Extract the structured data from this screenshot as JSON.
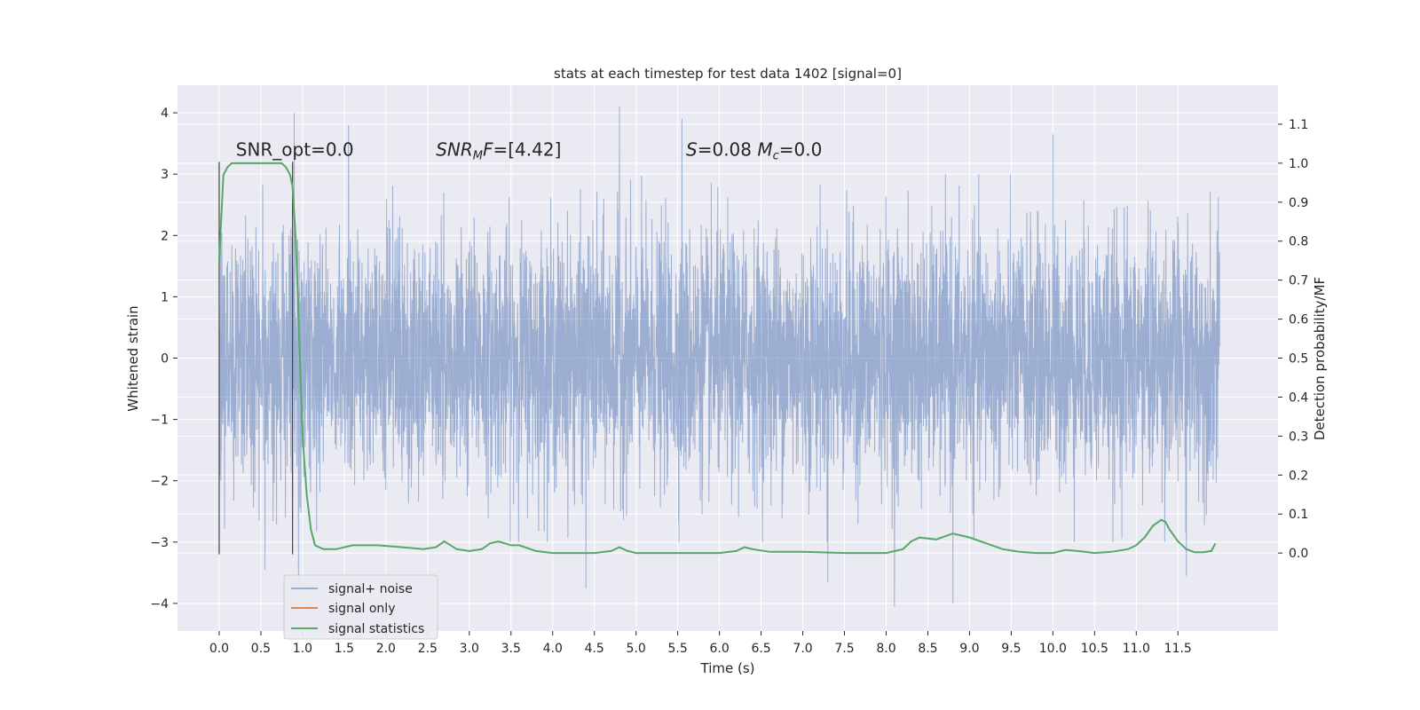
{
  "chart_data": {
    "type": "line",
    "title": "stats at each timestep for test data 1402 [signal=0]",
    "xlabel": "Time (s)",
    "ylabel": "Whitened strain",
    "y2label": "Detection probability/MF",
    "xlim": [
      -0.5,
      12.7
    ],
    "ylim": [
      -4.45,
      4.45
    ],
    "y2lim": [
      -0.2,
      1.2
    ],
    "grid": true,
    "legend_position": "lower-left",
    "x_ticks": [
      0.0,
      0.5,
      1.0,
      1.5,
      2.0,
      2.5,
      3.0,
      3.5,
      4.0,
      4.5,
      5.0,
      5.5,
      6.0,
      6.5,
      7.0,
      7.5,
      8.0,
      8.5,
      9.0,
      9.5,
      10.0,
      10.5,
      11.0,
      11.5
    ],
    "x_tick_labels": [
      "0.0",
      "0.5",
      "1.0",
      "1.5",
      "2.0",
      "2.5",
      "3.0",
      "3.5",
      "4.0",
      "4.5",
      "5.0",
      "5.5",
      "6.0",
      "6.5",
      "7.0",
      "7.5",
      "8.0",
      "8.5",
      "9.0",
      "9.5",
      "10.0",
      "10.5",
      "11.0",
      "11.5"
    ],
    "y_ticks": [
      4,
      3,
      2,
      1,
      0,
      -1,
      -2,
      -3,
      -4
    ],
    "y_tick_labels": [
      "4",
      "3",
      "2",
      "1",
      "0",
      "−1",
      "−2",
      "−3",
      "−4"
    ],
    "y2_ticks": [
      1.1,
      1.0,
      0.9,
      0.8,
      0.7,
      0.6,
      0.5,
      0.4,
      0.3,
      0.2,
      0.1,
      0.0
    ],
    "y2_tick_labels": [
      "1.1",
      "1.0",
      "0.9",
      "0.8",
      "0.7",
      "0.6",
      "0.5",
      "0.4",
      "0.3",
      "0.2",
      "0.1",
      "0.0"
    ],
    "annotations": [
      {
        "id": "snr-opt",
        "text": "SNR_opt=0.0",
        "x": 0.2,
        "y": 3.3
      },
      {
        "id": "snr-mf",
        "text": "SNR_MF=[4.42]",
        "x": 2.6,
        "y": 3.3
      },
      {
        "id": "s-mc",
        "text": "S=0.08   M_c=0.0",
        "x": 5.6,
        "y": 3.3
      }
    ],
    "vlines": [
      {
        "x": 0.0,
        "ymin": -3.2,
        "ymax": 3.2
      },
      {
        "x": 0.88,
        "ymin": -3.2,
        "ymax": 3.2
      }
    ],
    "series": [
      {
        "name": "signal+ noise",
        "color": "#4c72b0",
        "opacity": 0.5,
        "envelope": {
          "x_range": [
            0.0,
            12.0
          ],
          "typical_abs": 2.0,
          "peaks": [
            {
              "x": 0.9,
              "y": 4.0
            },
            {
              "x": 1.55,
              "y": 3.8
            },
            {
              "x": 4.8,
              "y": 4.1
            },
            {
              "x": 5.55,
              "y": 3.9
            },
            {
              "x": 10.0,
              "y": 3.65
            },
            {
              "x": 0.55,
              "y": -3.45
            },
            {
              "x": 0.95,
              "y": -3.7
            },
            {
              "x": 4.4,
              "y": -3.75
            },
            {
              "x": 8.1,
              "y": -4.05
            },
            {
              "x": 8.8,
              "y": -4.0
            },
            {
              "x": 11.6,
              "y": -3.55
            },
            {
              "x": 7.3,
              "y": -3.65
            }
          ]
        }
      },
      {
        "name": "signal only",
        "color": "#dd8452",
        "values": []
      },
      {
        "name": "signal statistics",
        "color": "#55a868",
        "axis": "right",
        "x": [
          0.0,
          0.05,
          0.1,
          0.15,
          0.2,
          0.3,
          0.4,
          0.5,
          0.6,
          0.7,
          0.75,
          0.8,
          0.85,
          0.88,
          0.92,
          0.96,
          1.0,
          1.05,
          1.1,
          1.15,
          1.25,
          1.4,
          1.6,
          1.9,
          2.2,
          2.45,
          2.6,
          2.7,
          2.85,
          3.0,
          3.15,
          3.25,
          3.35,
          3.5,
          3.6,
          3.8,
          4.0,
          4.5,
          4.7,
          4.8,
          4.9,
          5.0,
          5.5,
          6.0,
          6.2,
          6.3,
          6.4,
          6.6,
          7.0,
          7.5,
          8.0,
          8.2,
          8.3,
          8.4,
          8.6,
          8.8,
          9.0,
          9.2,
          9.4,
          9.6,
          9.8,
          10.0,
          10.15,
          10.3,
          10.5,
          10.7,
          10.9,
          11.0,
          11.1,
          11.2,
          11.3,
          11.35,
          11.4,
          11.5,
          11.6,
          11.7,
          11.8,
          11.9,
          11.95
        ],
        "values": [
          0.75,
          0.97,
          0.99,
          1.0,
          1.0,
          1.0,
          1.0,
          1.0,
          1.0,
          1.0,
          1.0,
          0.99,
          0.97,
          0.94,
          0.8,
          0.55,
          0.3,
          0.15,
          0.06,
          0.02,
          0.01,
          0.01,
          0.02,
          0.02,
          0.015,
          0.01,
          0.015,
          0.03,
          0.01,
          0.005,
          0.01,
          0.025,
          0.03,
          0.02,
          0.02,
          0.005,
          0.0,
          0.0,
          0.005,
          0.015,
          0.005,
          0.0,
          0.0,
          0.0,
          0.005,
          0.015,
          0.01,
          0.003,
          0.003,
          0.0,
          0.0,
          0.01,
          0.03,
          0.04,
          0.035,
          0.05,
          0.04,
          0.025,
          0.01,
          0.003,
          0.0,
          0.0,
          0.008,
          0.005,
          0.0,
          0.003,
          0.01,
          0.02,
          0.04,
          0.07,
          0.085,
          0.08,
          0.06,
          0.03,
          0.01,
          0.002,
          0.002,
          0.005,
          0.025
        ]
      }
    ]
  }
}
